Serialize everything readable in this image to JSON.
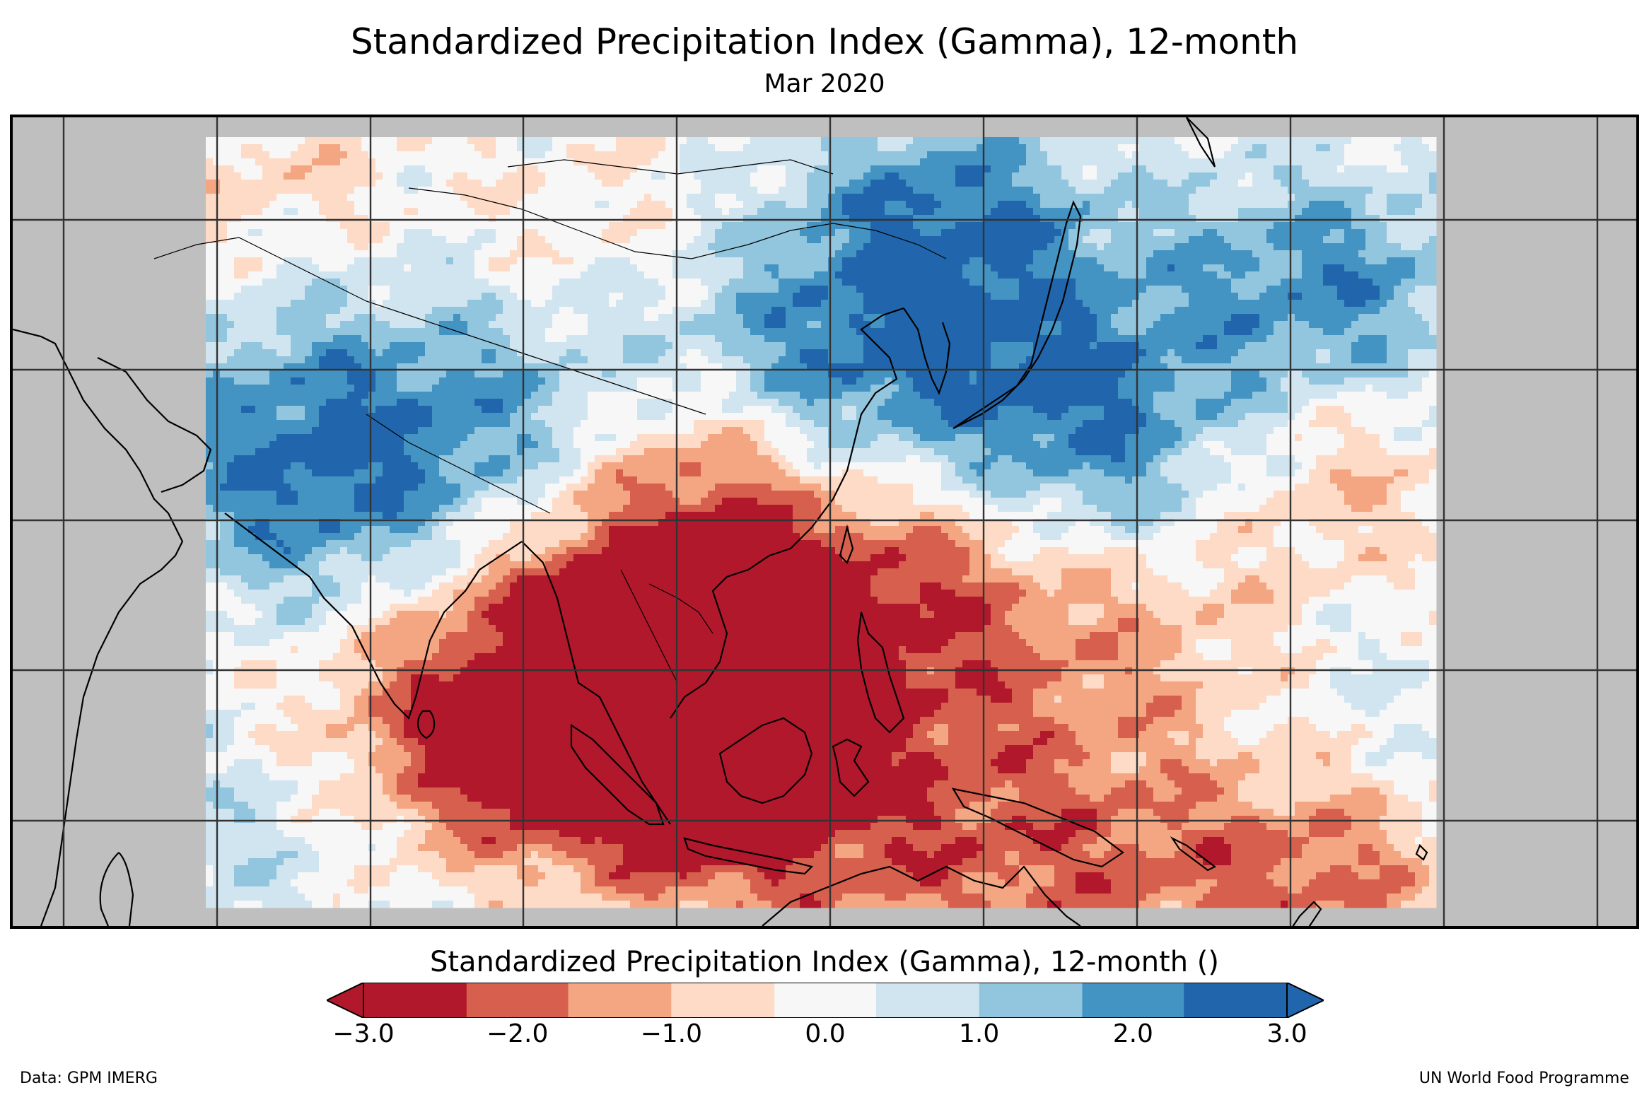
{
  "figure": {
    "title": "Standardized Precipitation Index (Gamma), 12-month",
    "subtitle": "Mar 2020",
    "data_credit": "Data: GPM IMERG",
    "org_credit": "UN World Food Programme"
  },
  "colorbar": {
    "title": "Standardized Precipitation Index (Gamma), 12-month ()",
    "tick_labels": [
      "−3.0",
      "−2.0",
      "−1.0",
      "0.0",
      "1.0",
      "2.0",
      "3.0"
    ],
    "tick_values": [
      -3,
      -2,
      -1,
      0,
      1,
      2,
      3
    ],
    "under_color": "#b2182b",
    "over_color": "#2166ac",
    "bins": [
      {
        "from": -3.0,
        "to": -2.33,
        "color": "#b2182b"
      },
      {
        "from": -2.33,
        "to": -1.67,
        "color": "#d6604d"
      },
      {
        "from": -1.67,
        "to": -1.0,
        "color": "#f4a582"
      },
      {
        "from": -1.0,
        "to": -0.33,
        "color": "#fddbc7"
      },
      {
        "from": -0.33,
        "to": 0.33,
        "color": "#f7f7f7"
      },
      {
        "from": 0.33,
        "to": 1.0,
        "color": "#d1e5f0"
      },
      {
        "from": 1.0,
        "to": 1.67,
        "color": "#92c5de"
      },
      {
        "from": 1.67,
        "to": 2.33,
        "color": "#4393c3"
      },
      {
        "from": 2.33,
        "to": 3.0,
        "color": "#2166ac"
      }
    ]
  },
  "map": {
    "no_data_color": "#bfbfbf",
    "grid_color": "#333333",
    "coast_color": "#000000"
  }
}
